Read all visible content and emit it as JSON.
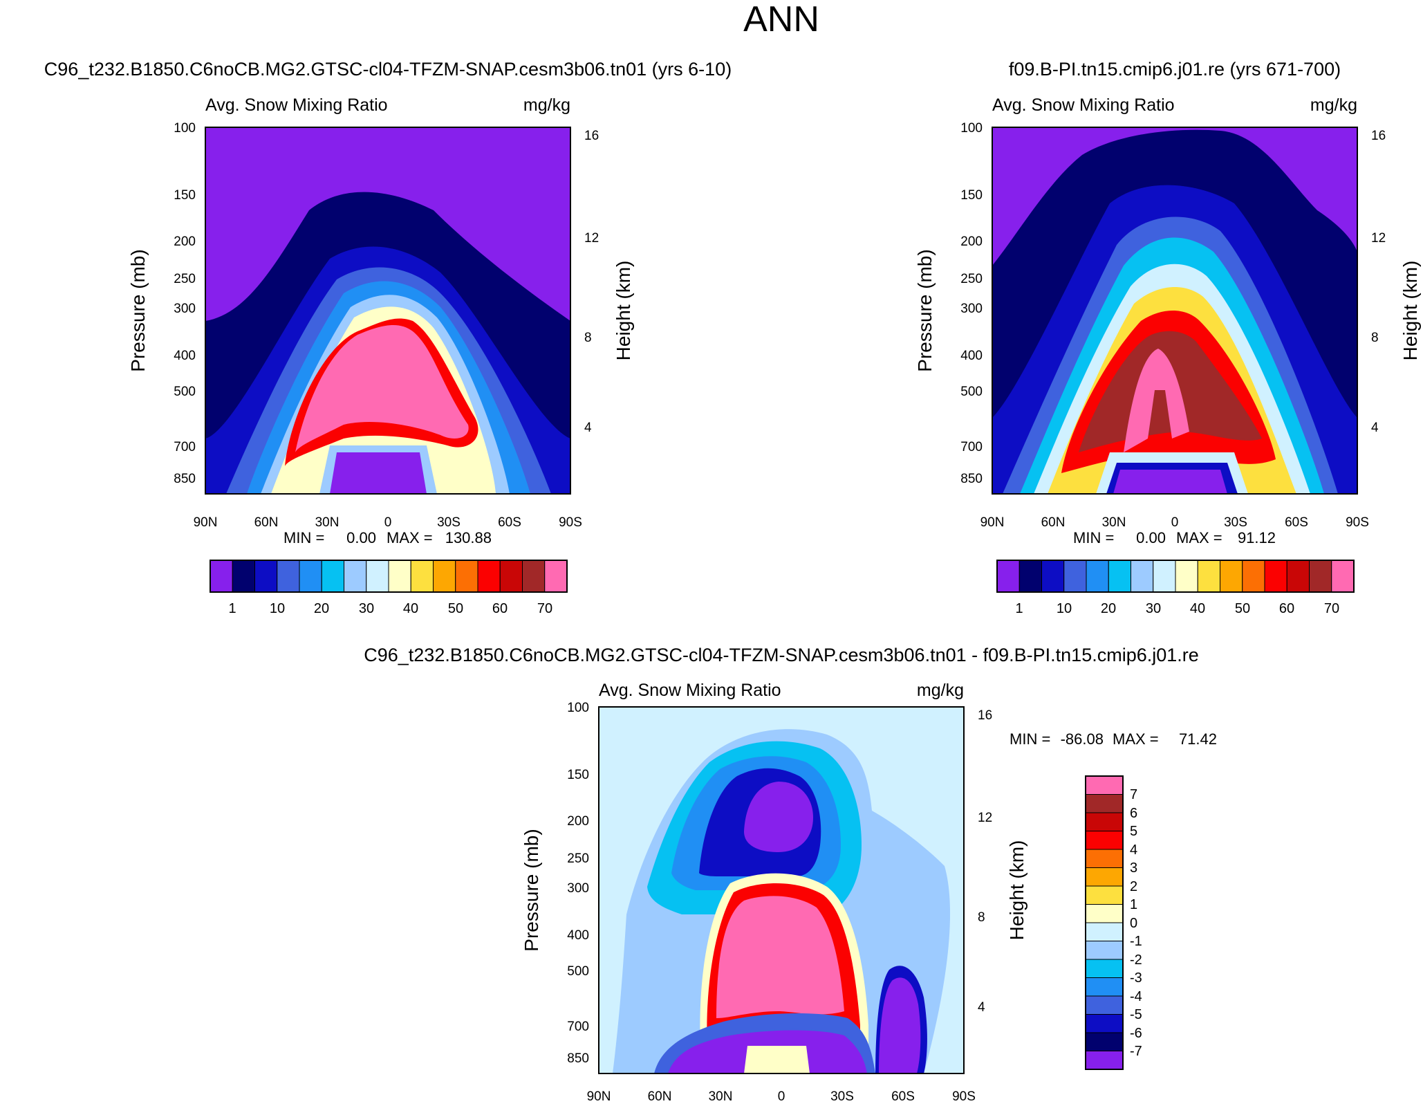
{
  "figure": {
    "title": "ANN",
    "colors": {
      "mean_levels": [
        "#8720ec",
        "#01016e",
        "#0d0dc4",
        "#3f62de",
        "#208ff4",
        "#06c1f2",
        "#9dcbff",
        "#d0f1ff",
        "#ffffc8",
        "#fde03f",
        "#fda702",
        "#fc6f04",
        "#fb0101",
        "#c90606",
        "#a12828",
        "#ff6ab2"
      ],
      "diff_levels": [
        "#8720ec",
        "#01016e",
        "#0d0dc4",
        "#3f62de",
        "#208ff4",
        "#06c1f2",
        "#9dcbff",
        "#d0f1ff",
        "#ffffc8",
        "#fde03f",
        "#fda702",
        "#fc6f04",
        "#fb0101",
        "#c90606",
        "#a12828",
        "#ff6ab2"
      ]
    }
  },
  "chart_data": [
    {
      "id": "panel-case",
      "type": "contour",
      "title": "C96_t232.B1850.C6noCB.MG2.GTSC-cl04-TFZM-SNAP.cesm3b06.tn01 (yrs 6-10)",
      "left_label": "Avg. Snow Mixing Ratio",
      "right_label": "mg/kg",
      "ylabel": "Pressure (mb)",
      "ylabel_right": "Height (km)",
      "x_ticks": [
        "90N",
        "60N",
        "30N",
        "0",
        "30S",
        "60S",
        "90S"
      ],
      "y_ticks": [
        "100",
        "150",
        "200",
        "250",
        "300",
        "400",
        "500",
        "700",
        "850"
      ],
      "y_right_ticks": [
        "16",
        "12",
        "8",
        "4"
      ],
      "min_label": "MIN =",
      "min_value": "0.00",
      "max_label": "MAX =",
      "max_value": "130.88",
      "colorbar_labels": [
        "1",
        "10",
        "20",
        "30",
        "40",
        "50",
        "60",
        "70"
      ],
      "field_summary": {
        "peak_region": "tropical mid-troposphere 300-700 mb, values above 70",
        "min": 0.0,
        "max": 130.88
      }
    },
    {
      "id": "panel-control",
      "type": "contour",
      "title": "f09.B-PI.tn15.cmip6.j01.re (yrs 671-700)",
      "left_label": "Avg. Snow Mixing Ratio",
      "right_label": "mg/kg",
      "ylabel": "Pressure (mb)",
      "ylabel_right": "Height (km)",
      "x_ticks": [
        "90N",
        "60N",
        "30N",
        "0",
        "30S",
        "60S",
        "90S"
      ],
      "y_ticks": [
        "100",
        "150",
        "200",
        "250",
        "300",
        "400",
        "500",
        "700",
        "850"
      ],
      "y_right_ticks": [
        "16",
        "12",
        "8",
        "4"
      ],
      "min_label": "MIN =",
      "min_value": "0.00",
      "max_label": "MAX =",
      "max_value": "91.12",
      "colorbar_labels": [
        "1",
        "10",
        "20",
        "30",
        "40",
        "50",
        "60",
        "70"
      ],
      "field_summary": {
        "peak_region": "tropical mid-troposphere 330-700 mb, values above 70",
        "min": 0.0,
        "max": 91.12
      }
    },
    {
      "id": "panel-diff",
      "type": "contour",
      "title": "C96_t232.B1850.C6noCB.MG2.GTSC-cl04-TFZM-SNAP.cesm3b06.tn01 - f09.B-PI.tn15.cmip6.j01.re",
      "left_label": "Avg. Snow Mixing Ratio",
      "right_label": "mg/kg",
      "ylabel": "Pressure (mb)",
      "ylabel_right": "Height (km)",
      "x_ticks": [
        "90N",
        "60N",
        "30N",
        "0",
        "30S",
        "60S",
        "90S"
      ],
      "y_ticks": [
        "100",
        "150",
        "200",
        "250",
        "300",
        "400",
        "500",
        "700",
        "850"
      ],
      "y_right_ticks": [
        "16",
        "12",
        "8",
        "4"
      ],
      "min_label": "MIN =",
      "min_value": "-86.08",
      "max_label": "MAX =",
      "max_value": "71.42",
      "colorbar_labels": [
        "7",
        "6",
        "5",
        "4",
        "3",
        "2",
        "1",
        "0",
        "-1",
        "-2",
        "-3",
        "-4",
        "-5",
        "-6",
        "-7"
      ],
      "field_summary": {
        "positive_region": "tropics 300-700 mb (values above 7)",
        "negative_region": "upper troposphere 150-300 mb over 30N-30S (values below -7)",
        "min": -86.08,
        "max": 71.42
      }
    }
  ]
}
